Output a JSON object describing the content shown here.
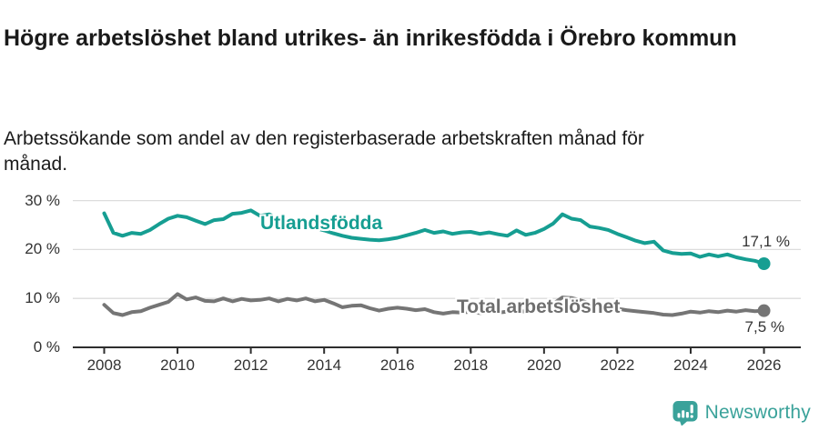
{
  "header": {
    "title": "Högre arbetslöshet bland utrikes- än inrikesfödda i Örebro kommun",
    "subtitle": "Arbetssökande som andel av den registerbaserade arbetskraften månad för månad."
  },
  "chart": {
    "series_labels": {
      "utlandsfodda": "Utlandsfödda",
      "total": "Total arbetslöshet"
    },
    "end_labels": {
      "utlandsfodda": "17,1 %",
      "total": "7,5 %"
    }
  },
  "colors": {
    "teal_line": "#169e92",
    "gray_line": "#757575",
    "teal_label": "#169e92",
    "gray_label": "#6f6f6f",
    "gridline": "#dcdcdc",
    "axis": "#2e2e2e",
    "tick_text": "#333333",
    "brand_teal": "#3aa29a"
  },
  "chart_data": {
    "type": "line",
    "title": "Högre arbetslöshet bland utrikes- än inrikesfödda i Örebro kommun",
    "subtitle": "Arbetssökande som andel av den registerbaserade arbetskraften månad för månad.",
    "unit": "%",
    "xlim": [
      2008,
      2026
    ],
    "ylim": [
      0,
      30
    ],
    "grid": true,
    "legend_position": "inline-labels",
    "x_tick_values": [
      2008,
      2010,
      2012,
      2014,
      2016,
      2018,
      2020,
      2022,
      2024,
      2026
    ],
    "y_tick_values": [
      30,
      20,
      10,
      0
    ],
    "y_tick_labels": [
      "30 %",
      "20 %",
      "10 %",
      "0 %"
    ],
    "x_start": 2008,
    "x_step_years": 0.25,
    "series": [
      {
        "name": "Utlandsfödda",
        "color": "#169e92",
        "end_value_label": "17,1 %",
        "values": [
          27.4,
          23.4,
          22.8,
          23.4,
          23.2,
          24.0,
          25.2,
          26.3,
          26.9,
          26.6,
          25.9,
          25.2,
          26.0,
          26.2,
          27.3,
          27.5,
          28.0,
          26.9,
          27.2,
          26.3,
          25.8,
          25.4,
          25.0,
          24.4,
          23.9,
          23.3,
          22.8,
          22.4,
          22.2,
          22.0,
          21.9,
          22.1,
          22.4,
          22.9,
          23.4,
          24.0,
          23.4,
          23.7,
          23.2,
          23.5,
          23.6,
          23.2,
          23.5,
          23.1,
          22.8,
          23.9,
          23.0,
          23.4,
          24.2,
          25.3,
          27.2,
          26.3,
          26.0,
          24.7,
          24.4,
          24.0,
          23.2,
          22.5,
          21.8,
          21.3,
          21.6,
          19.8,
          19.3,
          19.1,
          19.2,
          18.5,
          19.0,
          18.6,
          19.0,
          18.4,
          18.0,
          17.7,
          17.1
        ]
      },
      {
        "name": "Total arbetslöshet",
        "color": "#757575",
        "end_value_label": "7,5 %",
        "values": [
          8.7,
          7.0,
          6.6,
          7.2,
          7.4,
          8.1,
          8.7,
          9.3,
          10.9,
          9.8,
          10.2,
          9.5,
          9.4,
          10.0,
          9.4,
          9.9,
          9.6,
          9.7,
          10.0,
          9.4,
          9.9,
          9.6,
          10.0,
          9.4,
          9.7,
          9.0,
          8.2,
          8.5,
          8.6,
          8.0,
          7.5,
          7.9,
          8.1,
          7.9,
          7.6,
          7.8,
          7.2,
          6.9,
          7.2,
          7.1,
          7.3,
          7.0,
          7.2,
          7.1,
          7.3,
          7.5,
          7.3,
          7.6,
          7.9,
          8.9,
          10.2,
          10.1,
          9.6,
          9.0,
          8.6,
          8.2,
          7.9,
          7.6,
          7.4,
          7.2,
          7.0,
          6.7,
          6.6,
          6.9,
          7.3,
          7.1,
          7.4,
          7.2,
          7.5,
          7.3,
          7.6,
          7.4,
          7.5
        ]
      }
    ]
  },
  "footer": {
    "brand": "Newsworthy",
    "logo_icon": "bar-chart-speech-bubble-icon"
  }
}
